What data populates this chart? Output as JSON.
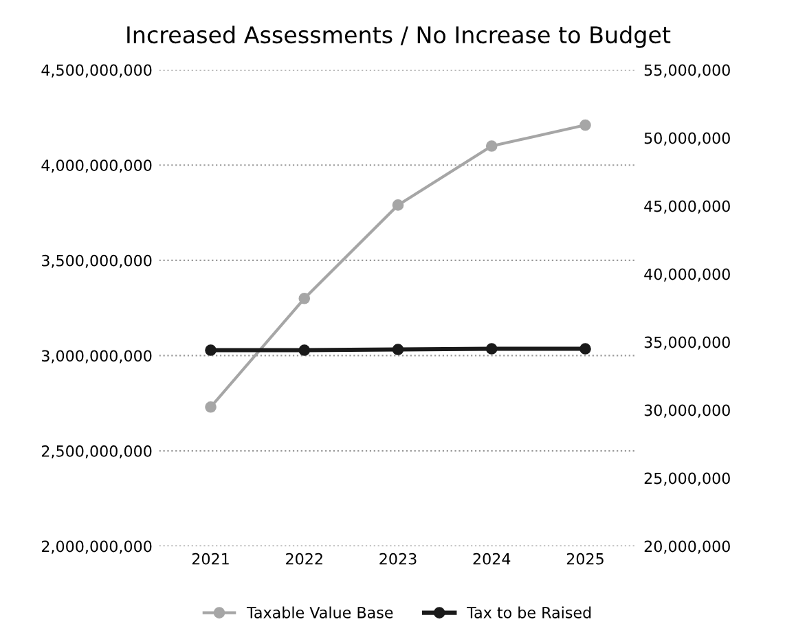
{
  "chart_data": {
    "type": "line",
    "title": "Increased Assessments / No Increase to Budget",
    "categories": [
      "2021",
      "2022",
      "2023",
      "2024",
      "2025"
    ],
    "series": [
      {
        "name": "Taxable Value Base",
        "color": "#a6a6a6",
        "values": [
          2730000000,
          3300000000,
          3790000000,
          4100000000,
          4210000000
        ]
      },
      {
        "name": "Tax to be Raised",
        "color": "#1a1a1a",
        "axis": "y2",
        "values": [
          34400000,
          34400000,
          34450000,
          34500000,
          34500000
        ]
      }
    ],
    "ylim": [
      2000000000,
      4500000000
    ],
    "yticks": [
      {
        "value": 2000000000,
        "label": "2,000,000,000"
      },
      {
        "value": 2500000000,
        "label": "2,500,000,000"
      },
      {
        "value": 3000000000,
        "label": "3,000,000,000"
      },
      {
        "value": 3500000000,
        "label": "3,500,000,000"
      },
      {
        "value": 4000000000,
        "label": "4,000,000,000"
      },
      {
        "value": 4500000000,
        "label": "4,500,000,000"
      }
    ],
    "y2lim": [
      20000000,
      55000000
    ],
    "y2ticks": [
      {
        "value": 20000000,
        "label": "20,000,000"
      },
      {
        "value": 25000000,
        "label": "25,000,000"
      },
      {
        "value": 30000000,
        "label": "30,000,000"
      },
      {
        "value": 35000000,
        "label": "35,000,000"
      },
      {
        "value": 40000000,
        "label": "40,000,000"
      },
      {
        "value": 45000000,
        "label": "45,000,000"
      },
      {
        "value": 50000000,
        "label": "50,000,000"
      },
      {
        "value": 55000000,
        "label": "55,000,000"
      }
    ],
    "grid": "y",
    "legend": "bottom",
    "marker": "circle",
    "line_style": "solid"
  }
}
